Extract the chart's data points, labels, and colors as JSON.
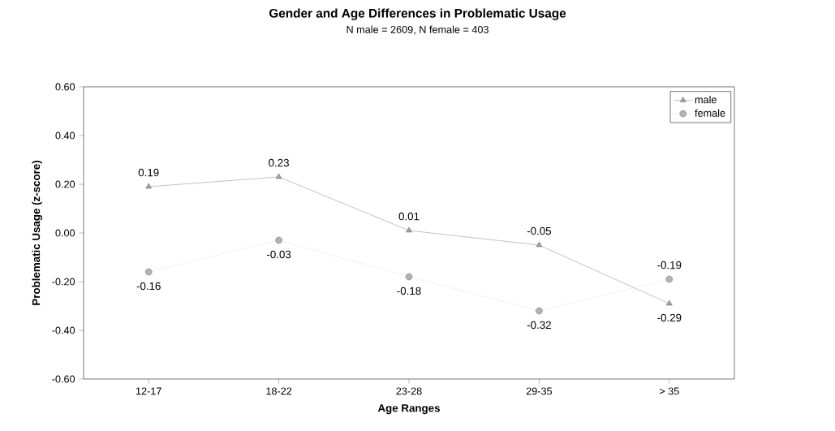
{
  "chart_data": {
    "type": "line",
    "title": "Gender and Age Differences in Problematic Usage",
    "subtitle": "N male = 2609, N female = 403",
    "xlabel": "Age Ranges",
    "ylabel": "Problematic Usage (z-score)",
    "categories": [
      "12-17",
      "18-22",
      "23-28",
      "29-35",
      "> 35"
    ],
    "series": [
      {
        "name": "male",
        "color": "#8c8c8c",
        "marker": "triangle",
        "line_style": "solid",
        "values": [
          0.19,
          0.23,
          0.01,
          -0.05,
          -0.29
        ],
        "value_labels": [
          "0.19",
          "0.23",
          "0.01",
          "-0.05",
          "-0.29"
        ]
      },
      {
        "name": "female",
        "color": "#a0a0a0",
        "marker": "circle",
        "line_style": "dotted",
        "values": [
          -0.16,
          -0.03,
          -0.18,
          -0.32,
          -0.19
        ],
        "value_labels": [
          "-0.16",
          "-0.03",
          "-0.18",
          "-0.32",
          "-0.19"
        ]
      }
    ],
    "ylim": [
      -0.6,
      0.6
    ],
    "yticks": [
      {
        "value": -0.6,
        "label": "-0.60"
      },
      {
        "value": -0.4,
        "label": "-0.40"
      },
      {
        "value": -0.2,
        "label": "-0.20"
      },
      {
        "value": 0,
        "label": "0.00"
      },
      {
        "value": 0.2,
        "label": "0.20"
      },
      {
        "value": 0.4,
        "label": "0.40"
      },
      {
        "value": 0.6,
        "label": "0.60"
      }
    ],
    "grid": false,
    "legend": "top right"
  }
}
